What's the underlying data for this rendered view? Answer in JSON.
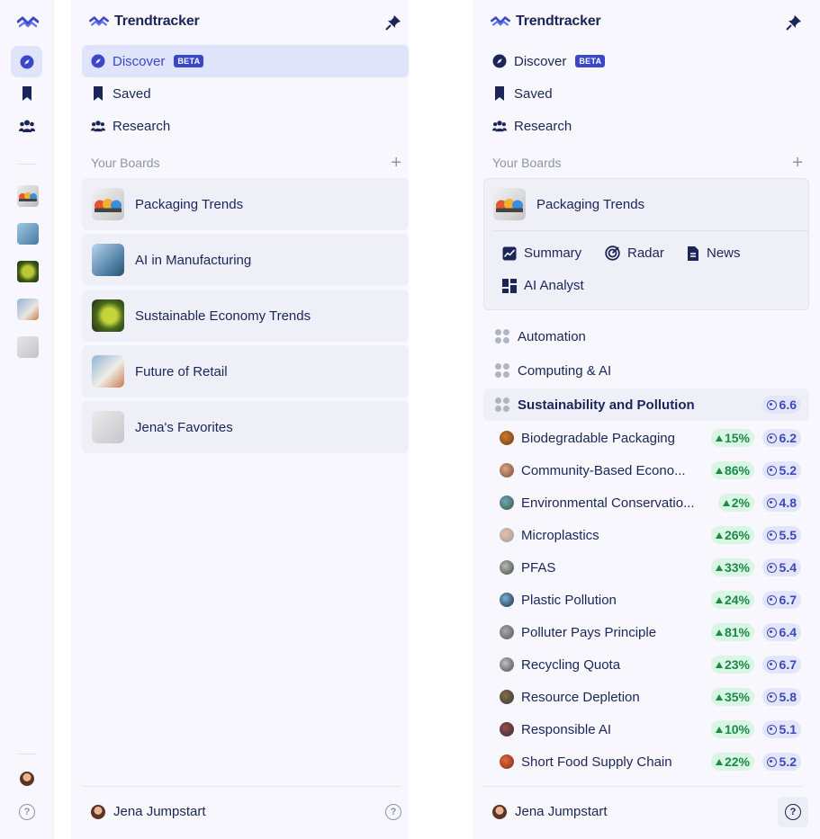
{
  "brand": {
    "name": "Trendtracker"
  },
  "rail": {
    "items": [
      "compass-icon",
      "bookmark-icon",
      "users-icon"
    ],
    "board_thumbs": [
      "packaging",
      "ai-manufacturing",
      "sustainable",
      "retail",
      "favorites"
    ]
  },
  "nav": {
    "discover": "Discover",
    "beta": "BETA",
    "saved": "Saved",
    "research": "Research"
  },
  "boards": {
    "heading": "Your Boards",
    "items": [
      {
        "label": "Packaging Trends"
      },
      {
        "label": "AI in Manufacturing"
      },
      {
        "label": "Sustainable Economy Trends"
      },
      {
        "label": "Future of Retail"
      },
      {
        "label": "Jena's Favorites"
      }
    ]
  },
  "expanded": {
    "title": "Packaging Trends",
    "sub": {
      "summary": "Summary",
      "radar": "Radar",
      "news": "News",
      "analyst": "AI Analyst"
    }
  },
  "categories": [
    {
      "label": "Automation"
    },
    {
      "label": "Computing & AI"
    },
    {
      "label": "Sustainability and Pollution",
      "score": "6.6"
    }
  ],
  "trends": [
    {
      "name": "Biodegradable Packaging",
      "growth": "15%",
      "score": "6.2"
    },
    {
      "name": "Community-Based Econo...",
      "growth": "86%",
      "score": "5.2"
    },
    {
      "name": "Environmental Conservatio...",
      "growth": "2%",
      "score": "4.8"
    },
    {
      "name": "Microplastics",
      "growth": "26%",
      "score": "5.5"
    },
    {
      "name": "PFAS",
      "growth": "33%",
      "score": "5.4"
    },
    {
      "name": "Plastic Pollution",
      "growth": "24%",
      "score": "6.7"
    },
    {
      "name": "Polluter Pays Principle",
      "growth": "81%",
      "score": "6.4"
    },
    {
      "name": "Recycling Quota",
      "growth": "23%",
      "score": "6.7"
    },
    {
      "name": "Resource Depletion",
      "growth": "35%",
      "score": "5.8"
    },
    {
      "name": "Responsible AI",
      "growth": "10%",
      "score": "5.1"
    },
    {
      "name": "Short Food Supply Chain",
      "growth": "22%",
      "score": "5.2"
    }
  ],
  "user": {
    "name": "Jena Jumpstart"
  },
  "colors": {
    "accent": "#3b47c9",
    "active_bg": "#dfe4fb",
    "growth": "#1c8a48",
    "score": "#3d48b8"
  }
}
